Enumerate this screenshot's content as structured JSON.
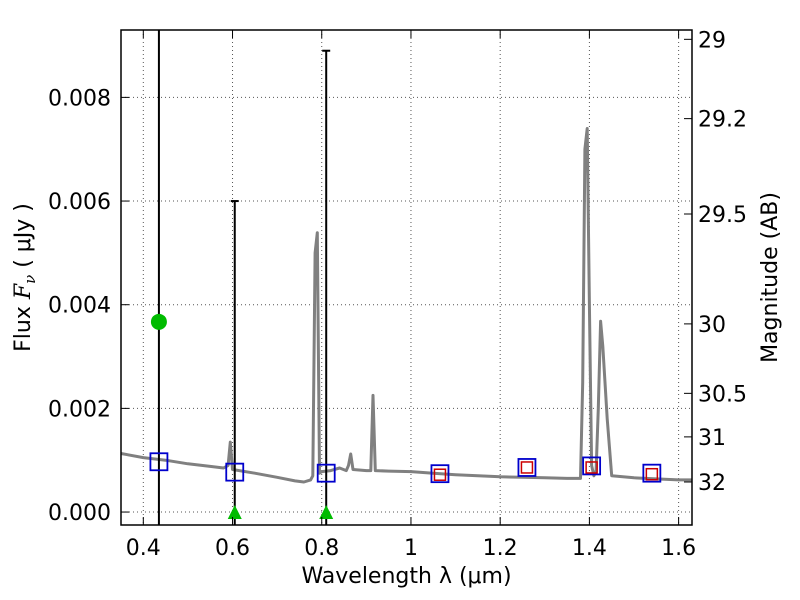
{
  "chart_data": {
    "type": "scatter",
    "xlabel": "Wavelength  λ (μm)",
    "ylabel_text": "Flux  ",
    "ylabel_math": "F",
    "ylabel_sub": "ν",
    "ylabel_unit": "  ( μJy )",
    "y2label": "Magnitude (AB)",
    "xlim": [
      0.35,
      1.63
    ],
    "ylim": [
      -0.00025,
      0.0093
    ],
    "grid": true,
    "x_ticks": [
      0.4,
      0.6,
      0.8,
      1.0,
      1.2,
      1.4,
      1.6
    ],
    "x_tick_labels": [
      "0.4",
      "0.6",
      "0.8",
      "1",
      "1.2",
      "1.4",
      "1.6"
    ],
    "y_ticks": [
      0.0,
      0.002,
      0.004,
      0.006,
      0.008
    ],
    "y_tick_labels": [
      "0.000",
      "0.002",
      "0.004",
      "0.006",
      "0.008"
    ],
    "y2_ticks": [
      {
        "label": "29",
        "flux": 0.00912
      },
      {
        "label": "29.2",
        "flux": 0.00759
      },
      {
        "label": "29.5",
        "flux": 0.00575
      },
      {
        "label": "30",
        "flux": 0.00363
      },
      {
        "label": "30.5",
        "flux": 0.00229
      },
      {
        "label": "31",
        "flux": 0.00145
      },
      {
        "label": "32",
        "flux": 0.00058
      }
    ],
    "colors": {
      "model": "#808080",
      "blue_box": "#0000cc",
      "red_box": "#cc0000",
      "detection": "#00bb00",
      "errorbar": "#000000",
      "grid": "#555555"
    },
    "model_spectrum": [
      [
        0.35,
        0.00113
      ],
      [
        0.4,
        0.00105
      ],
      [
        0.45,
        0.001
      ],
      [
        0.5,
        0.00093
      ],
      [
        0.55,
        0.00088
      ],
      [
        0.58,
        0.00085
      ],
      [
        0.59,
        0.0009
      ],
      [
        0.595,
        0.00135
      ],
      [
        0.6,
        0.00082
      ],
      [
        0.65,
        0.00075
      ],
      [
        0.7,
        0.00067
      ],
      [
        0.74,
        0.0006
      ],
      [
        0.76,
        0.00058
      ],
      [
        0.775,
        0.00062
      ],
      [
        0.78,
        0.0007
      ],
      [
        0.785,
        0.005
      ],
      [
        0.79,
        0.00539
      ],
      [
        0.795,
        0.00075
      ],
      [
        0.8,
        0.00078
      ],
      [
        0.82,
        0.0008
      ],
      [
        0.84,
        0.00085
      ],
      [
        0.855,
        0.0008
      ],
      [
        0.86,
        0.0009
      ],
      [
        0.865,
        0.00112
      ],
      [
        0.87,
        0.00082
      ],
      [
        0.9,
        0.0008
      ],
      [
        0.91,
        0.0008
      ],
      [
        0.915,
        0.00225
      ],
      [
        0.92,
        0.0008
      ],
      [
        0.95,
        0.00079
      ],
      [
        1.0,
        0.00078
      ],
      [
        1.05,
        0.00075
      ],
      [
        1.1,
        0.00072
      ],
      [
        1.15,
        0.0007
      ],
      [
        1.2,
        0.00068
      ],
      [
        1.25,
        0.00067
      ],
      [
        1.3,
        0.00066
      ],
      [
        1.35,
        0.00065
      ],
      [
        1.38,
        0.00065
      ],
      [
        1.385,
        0.0025
      ],
      [
        1.39,
        0.007
      ],
      [
        1.395,
        0.0074
      ],
      [
        1.4,
        0.004
      ],
      [
        1.405,
        0.0009
      ],
      [
        1.41,
        0.0007
      ],
      [
        1.415,
        0.0008
      ],
      [
        1.42,
        0.002
      ],
      [
        1.425,
        0.00368
      ],
      [
        1.43,
        0.0032
      ],
      [
        1.44,
        0.0018
      ],
      [
        1.45,
        0.0007
      ],
      [
        1.5,
        0.00066
      ],
      [
        1.55,
        0.00064
      ],
      [
        1.6,
        0.00062
      ],
      [
        1.63,
        0.00062
      ]
    ],
    "model_flux_boxes": [
      {
        "x": 0.435,
        "y": 0.00097
      },
      {
        "x": 0.605,
        "y": 0.00077
      },
      {
        "x": 0.81,
        "y": 0.00075
      },
      {
        "x": 1.065,
        "y": 0.00074
      },
      {
        "x": 1.26,
        "y": 0.00086
      },
      {
        "x": 1.405,
        "y": 0.00089
      },
      {
        "x": 1.54,
        "y": 0.00075
      }
    ],
    "observed_boxes": [
      {
        "x": 1.065,
        "y": 0.00072
      },
      {
        "x": 1.26,
        "y": 0.00086
      },
      {
        "x": 1.405,
        "y": 0.00086
      },
      {
        "x": 1.54,
        "y": 0.00073
      }
    ],
    "detections": [
      {
        "x": 0.435,
        "y": 0.00367
      }
    ],
    "upper_limits": [
      {
        "x": 0.605,
        "y": 0.0,
        "err_top": 0.006
      },
      {
        "x": 0.81,
        "y": 0.0,
        "err_top": 0.0089
      }
    ],
    "errorbars": [
      {
        "x": 0.435,
        "low": -0.00025,
        "high": 0.0093
      },
      {
        "x": 0.605,
        "low": -0.00025,
        "high": 0.006
      },
      {
        "x": 0.81,
        "low": -0.00025,
        "high": 0.0089
      }
    ]
  }
}
